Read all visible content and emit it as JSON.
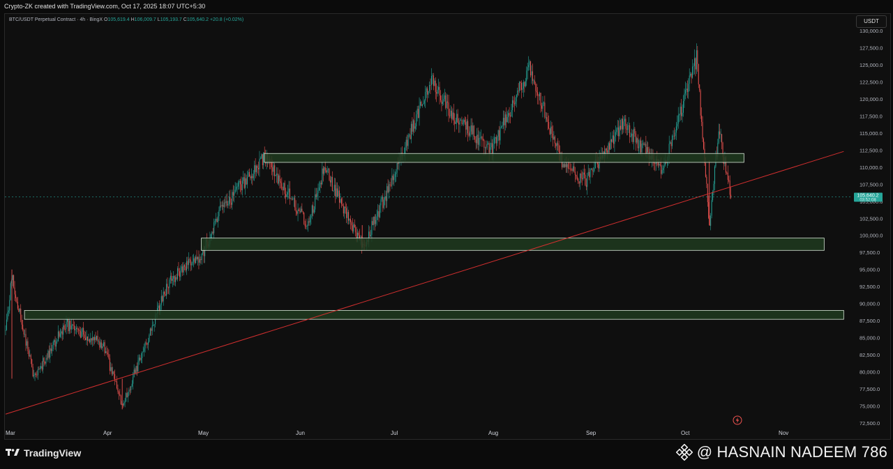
{
  "topbar": {
    "text": "Crypto-ZK created with TradingView.com, Oct 17, 2025 18:07 UTC+5:30"
  },
  "legend": {
    "symbol": "BTC/USDT Perpetual Contract · 4h · BingX",
    "o_label": "O",
    "o": "105,619.4",
    "h_label": "H",
    "h": "106,009.7",
    "l_label": "L",
    "l": "105,193.7",
    "c_label": "C",
    "c": "105,640.2",
    "change": "+20.8 (+0.02%)"
  },
  "currency_badge": "USDT",
  "price_axis": {
    "ticks": [
      "130,000.0",
      "127,500.0",
      "125,000.0",
      "122,500.0",
      "120,000.0",
      "117,500.0",
      "115,000.0",
      "112,500.0",
      "110,000.0",
      "107,500.0",
      "105,000.0",
      "102,500.0",
      "100,000.0",
      "97,500.0",
      "95,000.0",
      "92,500.0",
      "90,000.0",
      "87,500.0",
      "85,000.0",
      "82,500.0",
      "80,000.0",
      "77,500.0",
      "75,000.0",
      "72,500.0"
    ],
    "current_price_label": "105,640.2",
    "countdown_label": "03:52:08"
  },
  "time_axis": {
    "ticks": [
      "Mar",
      "Apr",
      "May",
      "Jun",
      "Jul",
      "Aug",
      "Sep",
      "Oct",
      "Nov"
    ]
  },
  "colors": {
    "up": "#26a69a",
    "down": "#ef5350",
    "zone_fill": "#1f3a1f",
    "zone_border": "#d8e8d8",
    "trendline": "#d32f2f",
    "background": "#0f0f0f"
  },
  "chart_data": {
    "type": "candlestick",
    "symbol": "BTC/USDT Perpetual Contract",
    "interval": "4h",
    "exchange": "BingX",
    "ylim": [
      72500,
      130000
    ],
    "x_range": [
      "Mar",
      "Nov"
    ],
    "approx_path": [
      {
        "x": "Mar 1",
        "y": 86000
      },
      {
        "x": "Mar 3",
        "y": 94000
      },
      {
        "x": "Mar 10",
        "y": 79000
      },
      {
        "x": "Mar 20",
        "y": 87000
      },
      {
        "x": "Apr 1",
        "y": 84000
      },
      {
        "x": "Apr 7",
        "y": 75000
      },
      {
        "x": "Apr 22",
        "y": 93500
      },
      {
        "x": "May 2",
        "y": 97000
      },
      {
        "x": "May 8",
        "y": 103500
      },
      {
        "x": "May 22",
        "y": 111500
      },
      {
        "x": "Jun 5",
        "y": 101500
      },
      {
        "x": "Jun 10",
        "y": 110000
      },
      {
        "x": "Jun 22",
        "y": 98200
      },
      {
        "x": "Jul 1",
        "y": 107500
      },
      {
        "x": "Jul 14",
        "y": 123000
      },
      {
        "x": "Jul 20",
        "y": 118000
      },
      {
        "x": "Aug 2",
        "y": 112500
      },
      {
        "x": "Aug 14",
        "y": 124500
      },
      {
        "x": "Aug 25",
        "y": 110000
      },
      {
        "x": "Sep 1",
        "y": 108000
      },
      {
        "x": "Sep 13",
        "y": 116500
      },
      {
        "x": "Sep 25",
        "y": 109000
      },
      {
        "x": "Oct 6",
        "y": 126000
      },
      {
        "x": "Oct 10",
        "y": 101500
      },
      {
        "x": "Oct 13",
        "y": 115500
      },
      {
        "x": "Oct 17",
        "y": 105640
      }
    ],
    "zones": [
      {
        "name": "resistance-zone",
        "y_low": 110700,
        "y_high": 112000,
        "from": "May 22",
        "to": "Oct 21"
      },
      {
        "name": "support-zone-1",
        "y_low": 97800,
        "y_high": 99600,
        "from": "May 2",
        "to": "Nov 15"
      },
      {
        "name": "support-zone-2",
        "y_low": 87700,
        "y_high": 89000,
        "from": "Mar 7",
        "to": "Nov 21"
      }
    ],
    "trendline": {
      "from": {
        "x": "Mar 1",
        "y": 73800
      },
      "to": {
        "x": "Nov 21",
        "y": 112300
      }
    },
    "last_price": 105640.2
  },
  "bottombar": {
    "logo_text": "TradingView",
    "watermark": "@ HASNAIN NADEEM 786"
  }
}
